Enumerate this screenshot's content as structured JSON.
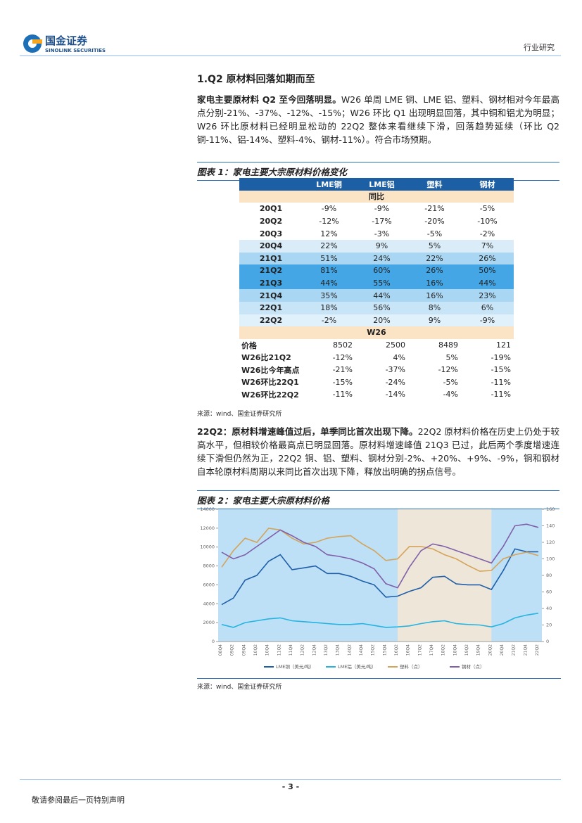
{
  "header": {
    "company": "国金证券",
    "company_en": "SINOLINK SECURITIES",
    "category": "行业研究"
  },
  "section_title": "1.Q2 原材料回落如期而至",
  "paragraph1": {
    "lead": "家电主要原材料 Q2 至今回落明显。",
    "text": "W26 单周 LME 铜、LME 铝、塑料、钢材相对今年最高点分别-21%、-37%、-12%、-15%；W26 环比 Q1 出现明显回落，其中铜和铝尤为明显；W26 环比原材料已经明显松动的 22Q2 整体来看继续下滑，回落趋势延续（环比 Q2 铜-11%、铝-14%、塑料-4%、钢材-11%）。符合市场预期。"
  },
  "figure1": {
    "caption": "图表 1：家电主要大宗原材料价格变化",
    "source": "来源：wind、国金证券研究所"
  },
  "table": {
    "header": [
      "LME铜",
      "LME铝",
      "塑料",
      "钢材"
    ],
    "sections": [
      {
        "title": "同比",
        "rows": [
          {
            "label": "20Q1",
            "cells": [
              "-9%",
              "-9%",
              "-21%",
              "-5%"
            ],
            "color": "#ffffff"
          },
          {
            "label": "20Q2",
            "cells": [
              "-12%",
              "-17%",
              "-20%",
              "-10%"
            ],
            "color": "#ffffff"
          },
          {
            "label": "20Q3",
            "cells": [
              "12%",
              "-3%",
              "-5%",
              "-2%"
            ],
            "color": "#ffffff"
          },
          {
            "label": "20Q4",
            "cells": [
              "22%",
              "9%",
              "5%",
              "7%"
            ],
            "color": "#d9ecf8"
          },
          {
            "label": "21Q1",
            "cells": [
              "51%",
              "24%",
              "22%",
              "26%"
            ],
            "color": "#a9d7f3"
          },
          {
            "label": "21Q2",
            "cells": [
              "81%",
              "60%",
              "26%",
              "50%"
            ],
            "color": "#45a6e6"
          },
          {
            "label": "21Q3",
            "cells": [
              "44%",
              "55%",
              "16%",
              "44%"
            ],
            "color": "#45a6e6"
          },
          {
            "label": "21Q4",
            "cells": [
              "35%",
              "44%",
              "16%",
              "23%"
            ],
            "color": "#a9d7f3"
          },
          {
            "label": "22Q1",
            "cells": [
              "18%",
              "56%",
              "8%",
              "6%"
            ],
            "color": "#c8e5f7"
          },
          {
            "label": "22Q2",
            "cells": [
              "-2%",
              "20%",
              "9%",
              "-9%"
            ],
            "color": "#e1f1fb"
          }
        ]
      },
      {
        "title": "W26",
        "rows": [
          {
            "label": "价格",
            "cells": [
              "8502",
              "2500",
              "8489",
              "121"
            ],
            "color": "#ffffff"
          },
          {
            "label": "W26比21Q2",
            "cells": [
              "-12%",
              "4%",
              "5%",
              "-19%"
            ],
            "color": "#ffffff"
          },
          {
            "label": "W26比今年高点",
            "cells": [
              "-21%",
              "-37%",
              "-12%",
              "-15%"
            ],
            "color": "#ffffff"
          },
          {
            "label": "W26环比22Q1",
            "cells": [
              "-15%",
              "-24%",
              "-5%",
              "-11%"
            ],
            "color": "#ffffff"
          },
          {
            "label": "W26环比22Q2",
            "cells": [
              "-11%",
              "-14%",
              "-4%",
              "-11%"
            ],
            "color": "#ffffff"
          }
        ]
      }
    ]
  },
  "paragraph2": {
    "lead": "22Q2：原材料增速峰值过后，单季同比首次出现下降。",
    "text": "22Q2 原材料价格在历史上仍处于较高水平，但相较价格最高点已明显回落。原材料增速峰值 21Q3 已过，此后两个季度增速连续下滑但仍然为正，22Q2 铜、铝、塑料、钢材分别-2%、+20%、+9%、-9%，铜和钢材自本轮原材料周期以来同比首次出现下降，释放出明确的拐点信号。"
  },
  "figure2": {
    "caption": "图表 2：家电主要大宗原材料价格",
    "source": "来源：wind、国金证券研究所"
  },
  "chart_data": {
    "type": "line",
    "categories": [
      "08Q4",
      "09Q2",
      "09Q4",
      "10Q2",
      "10Q4",
      "11Q2",
      "11Q4",
      "12Q2",
      "12Q4",
      "13Q2",
      "13Q4",
      "14Q2",
      "14Q4",
      "15Q2",
      "15Q4",
      "16Q2",
      "16Q4",
      "17Q2",
      "17Q4",
      "18Q2",
      "18Q4",
      "19Q2",
      "19Q4",
      "20Q2",
      "20Q4",
      "21Q2",
      "21Q4",
      "22Q2"
    ],
    "series": [
      {
        "name": "LME铜（美元/吨）",
        "color": "#1f5fa8",
        "axis": "y",
        "values": [
          3900,
          4600,
          6500,
          7000,
          8500,
          9200,
          7600,
          7800,
          8000,
          7200,
          7200,
          6900,
          6400,
          6000,
          4700,
          4800,
          5300,
          5700,
          6800,
          6900,
          6100,
          6000,
          6000,
          5500,
          7500,
          9800,
          9500,
          9500
        ]
      },
      {
        "name": "LME铝（美元/吨）",
        "color": "#25b3e0",
        "axis": "y",
        "values": [
          1800,
          1500,
          2000,
          2200,
          2400,
          2500,
          2200,
          2100,
          2000,
          1900,
          1800,
          1800,
          1900,
          1700,
          1500,
          1550,
          1650,
          1900,
          2100,
          2200,
          1900,
          1800,
          1750,
          1550,
          1900,
          2500,
          2800,
          3000
        ]
      },
      {
        "name": "塑料（点）",
        "color": "#d4a45a",
        "axis": "y2",
        "values": [
          90,
          110,
          125,
          120,
          137,
          135,
          125,
          118,
          120,
          125,
          127,
          128,
          118,
          110,
          98,
          100,
          115,
          115,
          112,
          105,
          100,
          92,
          85,
          86,
          100,
          105,
          108,
          104
        ]
      },
      {
        "name": "钢材（点）",
        "color": "#8060a8",
        "axis": "y2",
        "values": [
          108,
          100,
          105,
          115,
          125,
          135,
          128,
          120,
          115,
          105,
          103,
          100,
          95,
          88,
          70,
          65,
          90,
          110,
          118,
          115,
          110,
          105,
          100,
          95,
          115,
          140,
          142,
          138
        ]
      }
    ],
    "ylim": [
      0,
      14000
    ],
    "yticks": [
      0,
      2000,
      4000,
      6000,
      8000,
      10000,
      12000,
      14000
    ],
    "y2lim": [
      0,
      160
    ],
    "y2ticks": [
      0,
      20,
      40,
      60,
      80,
      100,
      120,
      140,
      160
    ],
    "background": "#bde0f7",
    "shaded_range": [
      "16Q2",
      "20Q2"
    ],
    "shade_color": "#efe6da"
  },
  "footer": {
    "page": "- 3 -",
    "disclaimer": "敬请参阅最后一页特别声明"
  }
}
